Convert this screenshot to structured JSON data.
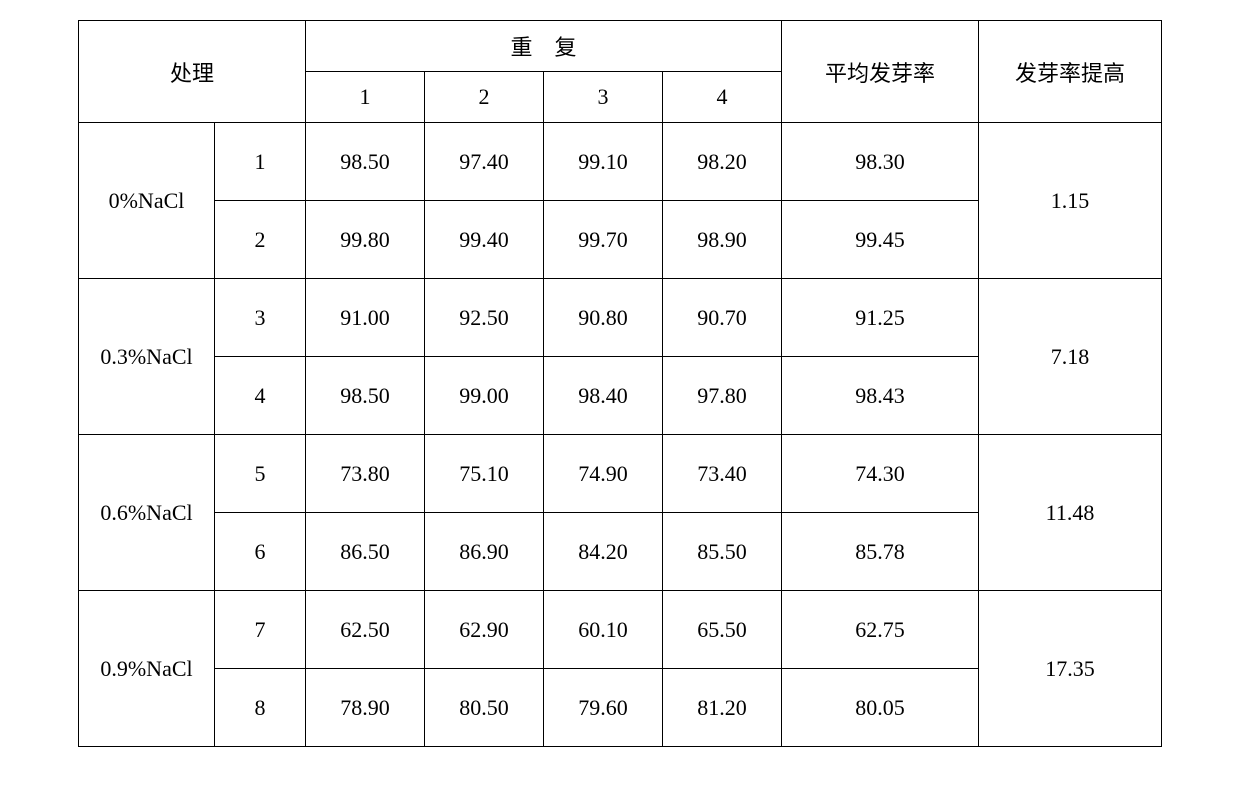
{
  "table": {
    "headers": {
      "treatment": "处理",
      "repeat": "重　复",
      "rep1": "1",
      "rep2": "2",
      "rep3": "3",
      "rep4": "4",
      "avg": "平均发芽率",
      "improve": "发芽率提高"
    },
    "groups": [
      {
        "name": "0%NaCl",
        "improve": "1.15",
        "rows": [
          {
            "num": "1",
            "r1": "98.50",
            "r2": "97.40",
            "r3": "99.10",
            "r4": "98.20",
            "avg": "98.30"
          },
          {
            "num": "2",
            "r1": "99.80",
            "r2": "99.40",
            "r3": "99.70",
            "r4": "98.90",
            "avg": "99.45"
          }
        ]
      },
      {
        "name": "0.3%NaCl",
        "improve": "7.18",
        "rows": [
          {
            "num": "3",
            "r1": "91.00",
            "r2": "92.50",
            "r3": "90.80",
            "r4": "90.70",
            "avg": "91.25"
          },
          {
            "num": "4",
            "r1": "98.50",
            "r2": "99.00",
            "r3": "98.40",
            "r4": "97.80",
            "avg": "98.43"
          }
        ]
      },
      {
        "name": "0.6%NaCl",
        "improve": "11.48",
        "rows": [
          {
            "num": "5",
            "r1": "73.80",
            "r2": "75.10",
            "r3": "74.90",
            "r4": "73.40",
            "avg": "74.30"
          },
          {
            "num": "6",
            "r1": "86.50",
            "r2": "86.90",
            "r3": "84.20",
            "r4": "85.50",
            "avg": "85.78"
          }
        ]
      },
      {
        "name": "0.9%NaCl",
        "improve": "17.35",
        "rows": [
          {
            "num": "7",
            "r1": "62.50",
            "r2": "62.90",
            "r3": "60.10",
            "r4": "65.50",
            "avg": "62.75"
          },
          {
            "num": "8",
            "r1": "78.90",
            "r2": "80.50",
            "r3": "79.60",
            "r4": "81.20",
            "avg": "80.05"
          }
        ]
      }
    ],
    "styling": {
      "border_color": "#000000",
      "background_color": "#ffffff",
      "text_color": "#000000",
      "font_family": "SimSun",
      "header_fontsize": 22,
      "data_fontsize": 22,
      "col_widths": {
        "treatment_name": 135,
        "treatment_num": 90,
        "rep": 118,
        "avg": 196,
        "improve": 182
      },
      "row_heights": {
        "header": 50,
        "data": 78
      },
      "border_width": 1.5
    }
  }
}
